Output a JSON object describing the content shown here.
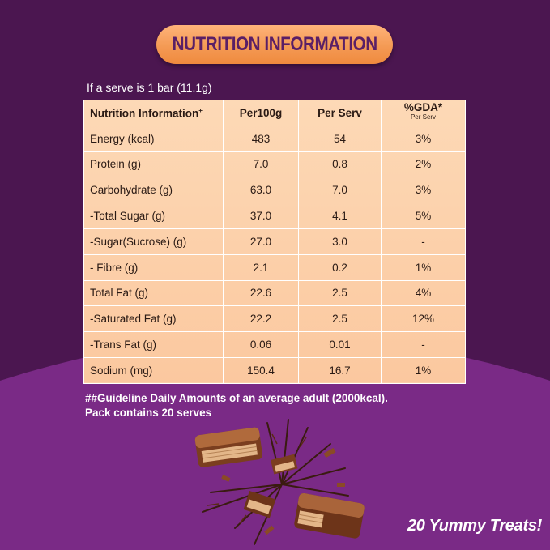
{
  "header": {
    "title": "NUTRITION INFORMATION"
  },
  "serve_note": "If a serve is 1 bar (11.1g)",
  "table": {
    "headers": [
      "Nutrition Information",
      "Per100g",
      "Per Serv",
      "%GDA*"
    ],
    "header_superscript": "+",
    "gda_subheader": "Per Serv",
    "rows": [
      [
        "Energy (kcal)",
        "483",
        "54",
        "3%"
      ],
      [
        "Protein (g)",
        "7.0",
        "0.8",
        "2%"
      ],
      [
        "Carbohydrate (g)",
        "63.0",
        "7.0",
        "3%"
      ],
      [
        "-Total Sugar (g)",
        "37.0",
        "4.1",
        "5%"
      ],
      [
        "-Sugar(Sucrose) (g)",
        "27.0",
        "3.0",
        "-"
      ],
      [
        "- Fibre (g)",
        "2.1",
        "0.2",
        "1%"
      ],
      [
        "Total Fat (g)",
        "22.6",
        "2.5",
        "4%"
      ],
      [
        "-Saturated Fat (g)",
        "22.2",
        "2.5",
        "12%"
      ],
      [
        "-Trans Fat (g)",
        "0.06",
        "0.01",
        "-"
      ],
      [
        "Sodium (mg)",
        "150.4",
        "16.7",
        "1%"
      ]
    ]
  },
  "footnote": {
    "line1": "##Guideline Daily Amounts of an average adult (2000kcal).",
    "line2": "Pack contains 20 serves"
  },
  "tagline": "20 Yummy Treats!",
  "colors": {
    "background_dark": "#4b1650",
    "background_light": "#7a2a86",
    "pill": "#f49a54",
    "table": "#fbc89f"
  }
}
